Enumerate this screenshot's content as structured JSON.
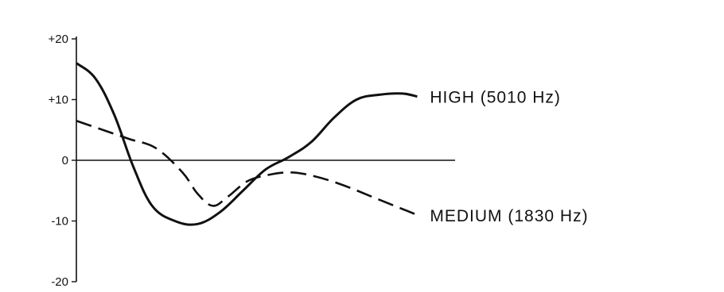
{
  "chart_data": {
    "type": "line",
    "title": "",
    "xlabel": "",
    "ylabel": "",
    "ylim": [
      -20,
      20
    ],
    "xlim": [
      0,
      10
    ],
    "grid": false,
    "zero_line": true,
    "yticks": [
      20,
      10,
      0,
      -10,
      -20
    ],
    "ytick_labels": [
      "+20",
      "+10",
      "0",
      "-10",
      "-20"
    ],
    "series": [
      {
        "name": "HIGH (5010 Hz)",
        "style": "solid",
        "x": [
          0,
          0.5,
          1.0,
          1.5,
          2.0,
          2.6,
          3.2,
          3.8,
          4.4,
          5.0,
          5.6,
          6.2,
          6.8,
          7.4,
          8.0,
          8.6,
          9.0
        ],
        "y": [
          16,
          13.5,
          7.5,
          -1,
          -7.5,
          -10,
          -10.5,
          -8.5,
          -5,
          -1.5,
          0.5,
          3,
          7,
          10,
          10.8,
          11,
          10.5
        ]
      },
      {
        "name": "MEDIUM (1830 Hz)",
        "style": "dashed",
        "x": [
          0,
          0.7,
          1.4,
          2.1,
          2.8,
          3.2,
          3.6,
          4.0,
          4.5,
          5.0,
          5.6,
          6.2,
          7.0,
          8.0,
          9.0
        ],
        "y": [
          6.5,
          5,
          3.5,
          2,
          -2,
          -5.5,
          -7.5,
          -6,
          -3.5,
          -2.5,
          -2,
          -2.5,
          -4,
          -6.5,
          -9
        ]
      }
    ],
    "colors": {
      "line": "#111111",
      "background": "#ffffff"
    }
  }
}
